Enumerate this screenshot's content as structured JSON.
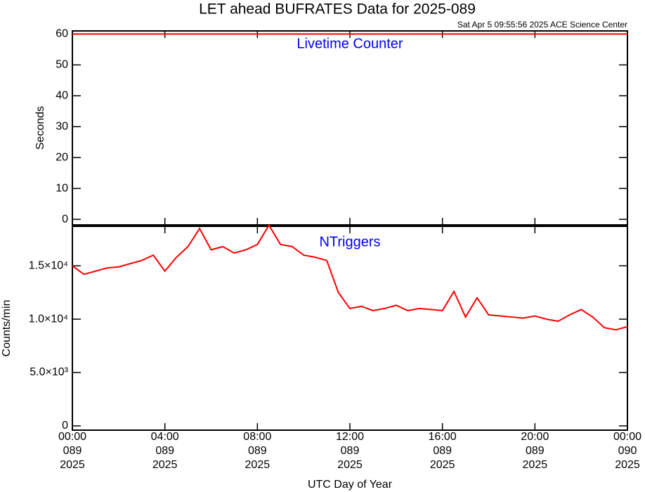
{
  "chart_data": [
    {
      "type": "line",
      "title": "LET ahead BUFRATES Data for 2025-089",
      "subtitle": "Sat Apr  5 09:55:56 2025 ACE Science Center",
      "ylabel": "Seconds",
      "annotation": "Livetime Counter",
      "annotation_color": "#0000ff",
      "xlim": [
        0,
        24
      ],
      "ylim": [
        -1.8,
        61
      ],
      "yticks": [
        0,
        10,
        20,
        30,
        40,
        50,
        60
      ],
      "x": [
        0,
        24
      ],
      "series": [
        {
          "name": "Livetime Counter",
          "color": "#ff0000",
          "values": [
            60,
            60
          ]
        }
      ]
    },
    {
      "type": "line",
      "ylabel": "Counts/min",
      "xlabel": "UTC Day of Year",
      "annotation": "NTriggers",
      "annotation_color": "#0000ff",
      "xlim": [
        0,
        24
      ],
      "ylim": [
        -400,
        18700
      ],
      "yticks": [
        0,
        {
          "value": 5000,
          "label": "5.0×10³"
        },
        {
          "value": 10000,
          "label": "1.0×10⁴"
        },
        {
          "value": 15000,
          "label": "1.5×10⁴"
        }
      ],
      "xticks": [
        {
          "value": 0,
          "label": "00:00\n089\n2025"
        },
        {
          "value": 4,
          "label": "04:00\n089\n2025"
        },
        {
          "value": 8,
          "label": "08:00\n089\n2025"
        },
        {
          "value": 12,
          "label": "12:00\n089\n2025"
        },
        {
          "value": 16,
          "label": "16:00\n089\n2025"
        },
        {
          "value": 20,
          "label": "20:00\n089\n2025"
        },
        {
          "value": 24,
          "label": "00:00\n090\n2025"
        }
      ],
      "x": [
        0,
        0.5,
        1,
        1.5,
        2,
        2.5,
        3,
        3.5,
        4,
        4.5,
        5,
        5.5,
        6,
        6.5,
        7,
        7.5,
        8,
        8.5,
        9,
        9.5,
        10,
        10.5,
        11,
        11.5,
        12,
        12.5,
        13,
        13.5,
        14,
        14.5,
        15,
        15.5,
        16,
        16.5,
        17,
        17.5,
        18,
        18.5,
        19,
        19.5,
        20,
        20.5,
        21,
        21.5,
        22,
        22.5,
        23,
        23.5,
        24
      ],
      "series": [
        {
          "name": "NTriggers",
          "color": "#ff0000",
          "values": [
            15000,
            14200,
            14500,
            14800,
            14900,
            15200,
            15500,
            16000,
            14500,
            15800,
            16800,
            18500,
            16500,
            16800,
            16200,
            16500,
            17000,
            18800,
            17000,
            16800,
            16000,
            15800,
            15500,
            12500,
            11000,
            11200,
            10800,
            11000,
            11300,
            10800,
            11000,
            10900,
            10800,
            12600,
            10200,
            12000,
            10400,
            10300,
            10200,
            10100,
            10300,
            10000,
            9800,
            10400,
            10900,
            10200,
            9200,
            9000,
            9300
          ]
        }
      ]
    }
  ]
}
